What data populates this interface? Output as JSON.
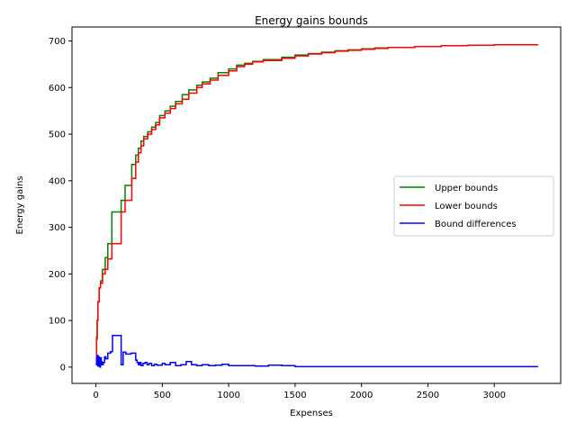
{
  "chart_data": {
    "type": "line",
    "step": true,
    "title": "Energy gains bounds",
    "xlabel": "Expenses",
    "ylabel": "Energy gains",
    "xlim": [
      -180,
      3500
    ],
    "ylim": [
      -35,
      730
    ],
    "xticks": [
      0,
      500,
      1000,
      1500,
      2000,
      2500,
      3000
    ],
    "yticks": [
      0,
      100,
      200,
      300,
      400,
      500,
      600,
      700
    ],
    "grid": false,
    "legend_position": "right",
    "series": [
      {
        "name": "Upper bounds",
        "color": "#008000",
        "x": [
          0,
          5,
          10,
          15,
          25,
          35,
          50,
          70,
          90,
          120,
          190,
          220,
          270,
          300,
          320,
          340,
          360,
          390,
          420,
          450,
          480,
          520,
          560,
          600,
          650,
          700,
          760,
          800,
          860,
          920,
          1000,
          1060,
          1120,
          1180,
          1260,
          1400,
          1500,
          1600,
          1700,
          1800,
          1900,
          2000,
          2100,
          2200,
          2400,
          2600,
          2800,
          3000,
          3200,
          3330
        ],
        "y": [
          30,
          65,
          100,
          140,
          170,
          185,
          210,
          235,
          265,
          333,
          358,
          390,
          435,
          455,
          470,
          485,
          495,
          505,
          515,
          525,
          540,
          550,
          560,
          570,
          585,
          595,
          605,
          612,
          620,
          632,
          640,
          648,
          652,
          656,
          660,
          665,
          670,
          673,
          676,
          679,
          681,
          683,
          685,
          686,
          688,
          690,
          691,
          692,
          692,
          692
        ]
      },
      {
        "name": "Lower bounds",
        "color": "#ff0000",
        "x": [
          0,
          5,
          10,
          15,
          25,
          35,
          50,
          70,
          90,
          120,
          190,
          220,
          270,
          300,
          320,
          340,
          360,
          390,
          420,
          450,
          480,
          520,
          560,
          600,
          650,
          700,
          760,
          800,
          860,
          920,
          1000,
          1060,
          1120,
          1180,
          1260,
          1400,
          1500,
          1600,
          1700,
          1800,
          1900,
          2000,
          2100,
          2200,
          2400,
          2600,
          2800,
          3000,
          3200,
          3330
        ],
        "y": [
          5,
          60,
          100,
          140,
          170,
          180,
          200,
          210,
          232,
          265,
          333,
          358,
          405,
          440,
          460,
          475,
          490,
          500,
          510,
          520,
          535,
          545,
          555,
          565,
          575,
          588,
          600,
          608,
          616,
          626,
          636,
          645,
          650,
          655,
          658,
          663,
          668,
          672,
          675,
          678,
          680,
          682,
          684,
          686,
          688,
          690,
          691,
          692,
          692,
          692
        ]
      },
      {
        "name": "Bound differences",
        "color": "#0000ff",
        "x": [
          0,
          5,
          10,
          15,
          20,
          25,
          30,
          35,
          40,
          45,
          55,
          65,
          75,
          90,
          110,
          125,
          190,
          205,
          225,
          265,
          300,
          310,
          320,
          330,
          340,
          355,
          370,
          385,
          400,
          420,
          440,
          460,
          500,
          520,
          560,
          600,
          640,
          680,
          720,
          760,
          800,
          850,
          900,
          950,
          1000,
          1060,
          1120,
          1200,
          1300,
          1400,
          1500,
          2000,
          3330
        ],
        "y": [
          20,
          5,
          25,
          2,
          22,
          15,
          0,
          20,
          12,
          5,
          10,
          22,
          18,
          30,
          33,
          68,
          5,
          32,
          28,
          30,
          15,
          10,
          5,
          10,
          3,
          8,
          10,
          5,
          8,
          3,
          6,
          4,
          8,
          5,
          10,
          3,
          5,
          12,
          5,
          3,
          5,
          3,
          4,
          6,
          3,
          3,
          3,
          2,
          4,
          3,
          1,
          1,
          1
        ]
      }
    ]
  }
}
